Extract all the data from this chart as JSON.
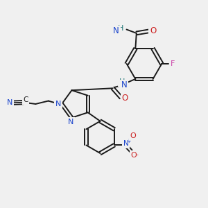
{
  "background_color": "#f0f0f0",
  "figsize": [
    3.0,
    3.0
  ],
  "dpi": 100,
  "colors": {
    "C": "#1a1a1a",
    "N": "#1a44cc",
    "O": "#cc2222",
    "F": "#cc44aa",
    "H": "#227777",
    "bond": "#1a1a1a"
  },
  "bond_lw": 1.4,
  "font_size": 7.5
}
